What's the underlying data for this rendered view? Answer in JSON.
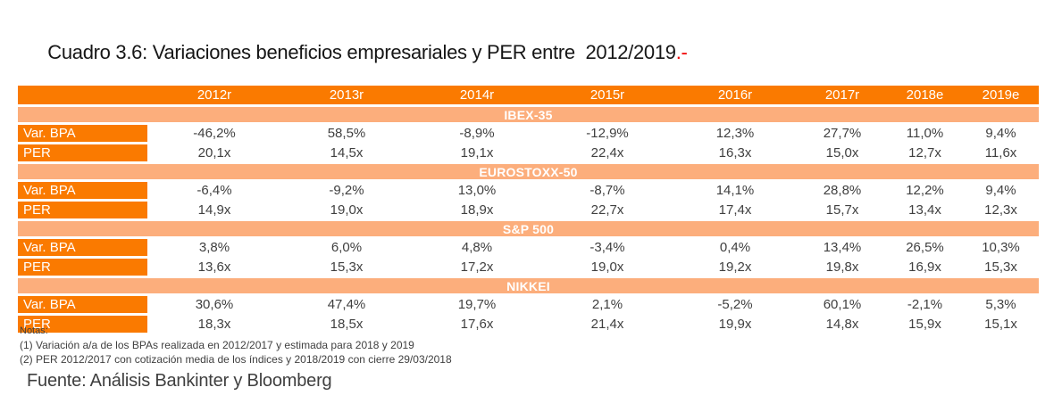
{
  "title": {
    "text": "Cuadro 3.6: Variaciones beneficios empresariales y PER entre  2012/2019",
    "suffix": ".-"
  },
  "colors": {
    "header_orange": "#fa7a00",
    "band_light_orange": "#fcae7c",
    "value_text": "#3f3f3f",
    "title_red": "#f00000"
  },
  "table": {
    "year_headers": [
      "2012r",
      "2013r",
      "2014r",
      "2015r",
      "2016r",
      "2017r",
      "2018e",
      "2019e"
    ],
    "sections": [
      {
        "name": "IBEX-35",
        "rows": [
          {
            "label": "Var. BPA",
            "values": [
              "-46,2%",
              "58,5%",
              "-8,9%",
              "-12,9%",
              "12,3%",
              "27,7%",
              "11,0%",
              "9,4%"
            ]
          },
          {
            "label": "PER",
            "values": [
              "20,1x",
              "14,5x",
              "19,1x",
              "22,4x",
              "16,3x",
              "15,0x",
              "12,7x",
              "11,6x"
            ]
          }
        ]
      },
      {
        "name": "EUROSTOXX-50",
        "rows": [
          {
            "label": "Var. BPA",
            "values": [
              "-6,4%",
              "-9,2%",
              "13,0%",
              "-8,7%",
              "14,1%",
              "28,8%",
              "12,2%",
              "9,4%"
            ]
          },
          {
            "label": "PER",
            "values": [
              "14,9x",
              "19,0x",
              "18,9x",
              "22,7x",
              "17,4x",
              "15,7x",
              "13,4x",
              "12,3x"
            ]
          }
        ]
      },
      {
        "name": "S&P 500",
        "rows": [
          {
            "label": "Var. BPA",
            "values": [
              "3,8%",
              "6,0%",
              "4,8%",
              "-3,4%",
              "0,4%",
              "13,4%",
              "26,5%",
              "10,3%"
            ]
          },
          {
            "label": "PER",
            "values": [
              "13,6x",
              "15,3x",
              "17,2x",
              "19,0x",
              "19,2x",
              "19,8x",
              "16,9x",
              "15,3x"
            ]
          }
        ]
      },
      {
        "name": "NIKKEI",
        "rows": [
          {
            "label": "Var. BPA",
            "values": [
              "30,6%",
              "47,4%",
              "19,7%",
              "2,1%",
              "-5,2%",
              "60,1%",
              "-2,1%",
              "5,3%"
            ]
          },
          {
            "label": "PER",
            "values": [
              "18,3x",
              "18,5x",
              "17,6x",
              "21,4x",
              "19,9x",
              "14,8x",
              "15,9x",
              "15,1x"
            ]
          }
        ]
      }
    ]
  },
  "notes": {
    "heading": "Notas:",
    "lines": [
      "(1) Variación a/a de los BPAs realizada en 2012/2017 y estimada para 2018 y 2019",
      "(2) PER 2012/2017 con cotización media de los índices y 2018/2019 con cierre 29/03/2018"
    ]
  },
  "source": "Fuente: Análisis Bankinter y Bloomberg"
}
